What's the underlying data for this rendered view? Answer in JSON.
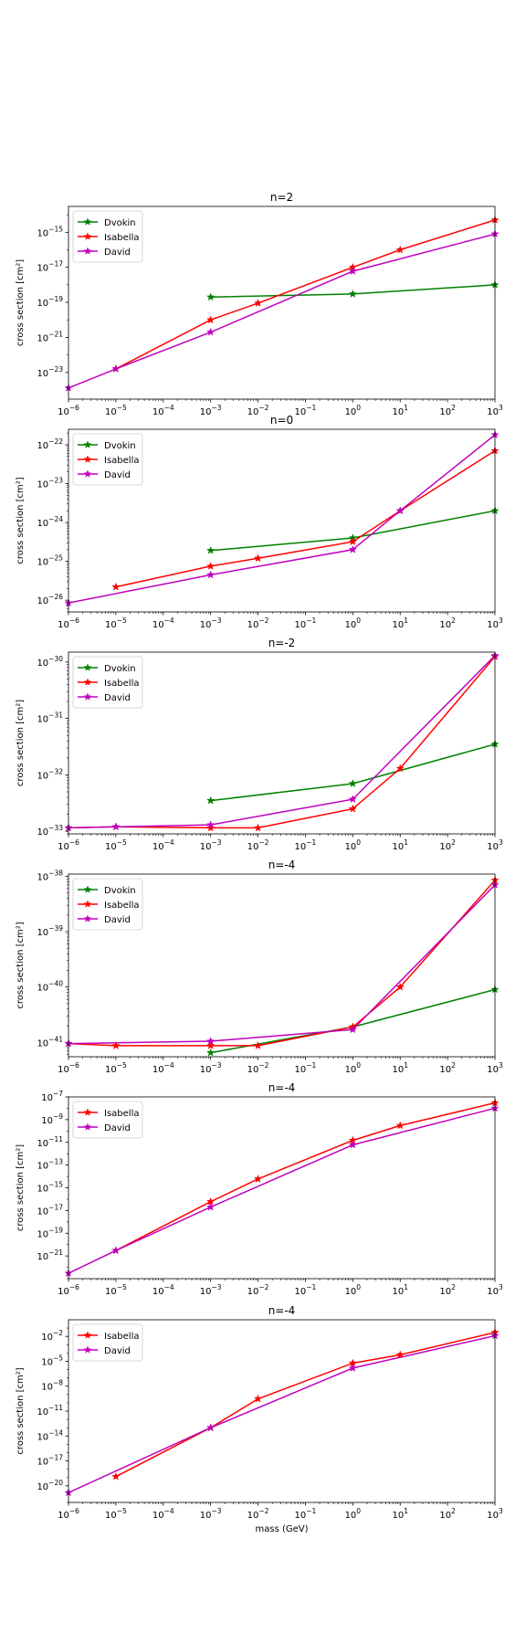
{
  "chart_data": [
    {
      "type": "line",
      "title": "n=2",
      "xlabel": "",
      "ylabel": "cross section [cm²]",
      "xscale": "log",
      "yscale": "log",
      "xlim": [
        1e-06,
        1000
      ],
      "ylim": [
        3e-25,
        3e-14
      ],
      "yticks": [
        -23,
        -21,
        -19,
        -17,
        -15
      ],
      "legend": "upper left",
      "series": [
        {
          "name": "Dvokin",
          "color": "#008000",
          "x": [
            0.001,
            1,
            1000
          ],
          "y": [
            2e-19,
            3e-19,
            1e-18
          ]
        },
        {
          "name": "Isabella",
          "color": "#ff0000",
          "x": [
            1e-05,
            0.001,
            0.01,
            1,
            10,
            1000
          ],
          "y": [
            1.6e-23,
            1e-20,
            9e-20,
            1e-17,
            1e-16,
            5e-15
          ]
        },
        {
          "name": "David",
          "color": "#bf00bf",
          "x": [
            1e-06,
            1e-05,
            0.001,
            1,
            1000
          ],
          "y": [
            1.3e-24,
            1.6e-23,
            2e-21,
            6e-18,
            8e-16
          ]
        }
      ]
    },
    {
      "type": "line",
      "title": "n=0",
      "xlabel": "",
      "ylabel": "cross section [cm²]",
      "xscale": "log",
      "yscale": "log",
      "xlim": [
        1e-06,
        1000
      ],
      "ylim": [
        5e-27,
        2.5e-22
      ],
      "yticks": [
        -26,
        -25,
        -24,
        -23,
        -22
      ],
      "legend": "upper left",
      "series": [
        {
          "name": "Dvokin",
          "color": "#008000",
          "x": [
            0.001,
            1,
            1000
          ],
          "y": [
            1.9e-25,
            4e-25,
            2e-24
          ]
        },
        {
          "name": "Isabella",
          "color": "#ff0000",
          "x": [
            1e-05,
            0.001,
            0.01,
            1,
            10,
            1000
          ],
          "y": [
            2.2e-26,
            7.5e-26,
            1.2e-25,
            3.2e-25,
            2e-24,
            7e-23
          ]
        },
        {
          "name": "David",
          "color": "#bf00bf",
          "x": [
            1e-06,
            0.001,
            1,
            10,
            1000
          ],
          "y": [
            8.5e-27,
            4.5e-26,
            2e-25,
            2e-24,
            1.8e-22
          ]
        }
      ]
    },
    {
      "type": "line",
      "title": "n=-2",
      "xlabel": "",
      "ylabel": "cross section [cm²]",
      "xscale": "log",
      "yscale": "log",
      "xlim": [
        1e-06,
        1000
      ],
      "ylim": [
        9e-34,
        1.5e-30
      ],
      "yticks": [
        -33,
        -32,
        -31,
        -30
      ],
      "legend": "upper left",
      "series": [
        {
          "name": "Dvokin",
          "color": "#008000",
          "x": [
            0.001,
            1,
            1000
          ],
          "y": [
            3.5e-33,
            7e-33,
            3.5e-32
          ]
        },
        {
          "name": "Isabella",
          "color": "#ff0000",
          "x": [
            1e-06,
            1e-05,
            0.001,
            0.01,
            1,
            10,
            1000
          ],
          "y": [
            1.15e-33,
            1.2e-33,
            1.15e-33,
            1.15e-33,
            2.5e-33,
            1.3e-32,
            1.25e-30
          ]
        },
        {
          "name": "David",
          "color": "#bf00bf",
          "x": [
            1e-06,
            1e-05,
            0.001,
            1,
            1000
          ],
          "y": [
            1.15e-33,
            1.2e-33,
            1.3e-33,
            3.7e-33,
            1.3e-30
          ]
        }
      ]
    },
    {
      "type": "line",
      "title": "n=-4",
      "xlabel": "",
      "ylabel": "cross section [cm²]",
      "xscale": "log",
      "yscale": "log",
      "xlim": [
        1e-06,
        1000
      ],
      "ylim": [
        5.5e-42,
        1.1e-38
      ],
      "yticks": [
        -41,
        -40,
        -39,
        -38
      ],
      "legend": "upper left",
      "series": [
        {
          "name": "Dvokin",
          "color": "#008000",
          "x": [
            0.001,
            1,
            1000
          ],
          "y": [
            6.5e-42,
            1.9e-41,
            9e-41
          ]
        },
        {
          "name": "Isabella",
          "color": "#ff0000",
          "x": [
            1e-06,
            1e-05,
            0.001,
            0.01,
            1,
            10,
            1000
          ],
          "y": [
            9.5e-42,
            8.7e-42,
            8.7e-42,
            8.7e-42,
            1.9e-41,
            1e-40,
            8.5e-39
          ]
        },
        {
          "name": "David",
          "color": "#bf00bf",
          "x": [
            1e-06,
            0.001,
            1,
            1000
          ],
          "y": [
            9.5e-42,
            1.05e-41,
            1.7e-41,
            7e-39
          ]
        }
      ]
    },
    {
      "type": "line",
      "title": "n=-4",
      "xlabel": "",
      "ylabel": "cross section [cm²]",
      "xscale": "log",
      "yscale": "log",
      "xlim": [
        1e-06,
        1000
      ],
      "ylim": [
        1e-23,
        1e-07
      ],
      "yticks": [
        -21,
        -19,
        -17,
        -15,
        -13,
        -11,
        -9,
        -7
      ],
      "legend": "upper left",
      "series": [
        {
          "name": "Isabella",
          "color": "#ff0000",
          "x": [
            1e-05,
            0.001,
            0.01,
            1,
            10,
            1000
          ],
          "y": [
            3e-21,
            6e-17,
            6e-15,
            1.5e-11,
            3e-10,
            3e-08
          ]
        },
        {
          "name": "David",
          "color": "#bf00bf",
          "x": [
            1e-06,
            1e-05,
            0.001,
            1,
            1000
          ],
          "y": [
            3e-23,
            3e-21,
            2e-17,
            6e-12,
            1e-08
          ]
        }
      ]
    },
    {
      "type": "line",
      "title": "n=-4",
      "xlabel": "mass (GeV)",
      "ylabel": "cross section [cm²]",
      "xscale": "log",
      "yscale": "log",
      "xlim": [
        1e-06,
        1000
      ],
      "ylim": [
        1e-22,
        1
      ],
      "yticks": [
        -20,
        -17,
        -14,
        -11,
        -8,
        -5,
        -2
      ],
      "legend": "upper left",
      "series": [
        {
          "name": "Isabella",
          "color": "#ff0000",
          "x": [
            1e-05,
            0.001,
            0.01,
            1,
            10,
            1000
          ],
          "y": [
            1.3e-19,
            1e-13,
            3e-10,
            6e-06,
            6e-05,
            0.03
          ]
        },
        {
          "name": "David",
          "color": "#bf00bf",
          "x": [
            1e-06,
            0.001,
            1,
            1000
          ],
          "y": [
            1.5e-21,
            1e-13,
            1.5e-06,
            0.012
          ]
        }
      ]
    }
  ]
}
